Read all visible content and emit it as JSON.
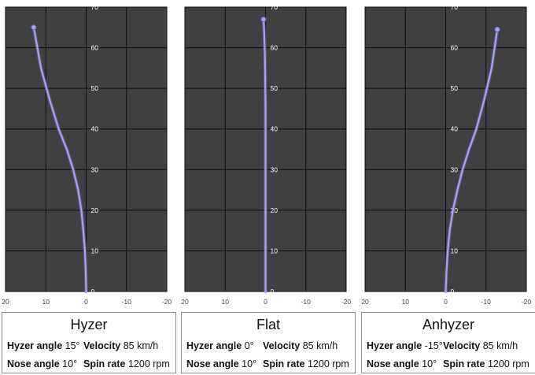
{
  "labels": {
    "hyzer_angle": "Hyzer angle",
    "nose_angle": "Nose angle",
    "velocity": "Velocity",
    "spin_rate": "Spin rate"
  },
  "style": {
    "plot_bg": "#404040",
    "grid": "#0d0d0d",
    "tick_text": "#ffffff",
    "curve": "#a7a3ef",
    "curve_glow": "#6e6ac0"
  },
  "panels": [
    {
      "name": "Hyzer",
      "hyzer_angle": "15°",
      "nose_angle": "10°",
      "velocity": "85 km/h",
      "spin_rate": "1200 rpm"
    },
    {
      "name": "Flat",
      "hyzer_angle": "0°",
      "nose_angle": "10°",
      "velocity": "85 km/h",
      "spin_rate": "1200 rpm"
    },
    {
      "name": "Anhyzer",
      "hyzer_angle": "-15°",
      "nose_angle": "10°",
      "velocity": "85 km/h",
      "spin_rate": "1200 rpm"
    }
  ],
  "chart_data": [
    {
      "type": "line",
      "title": "",
      "xlabel": "",
      "ylabel": "",
      "xlim": [
        20,
        -20
      ],
      "ylim": [
        0,
        70
      ],
      "x_ticks": [
        "20",
        "10",
        "0",
        "-10",
        "-20"
      ],
      "y_ticks": [
        "0",
        "10",
        "20",
        "30",
        "40",
        "50",
        "60",
        "70"
      ],
      "grid": true,
      "series": [
        {
          "x": [
            0,
            0.1,
            0.3,
            0.7,
            1.2,
            2,
            3.2,
            4.8,
            6.8,
            9,
            11.2,
            13
          ],
          "y": [
            0,
            5,
            10,
            15,
            20,
            25,
            30,
            35,
            40,
            47,
            55,
            65
          ]
        }
      ]
    },
    {
      "type": "line",
      "title": "",
      "xlabel": "",
      "ylabel": "",
      "xlim": [
        20,
        -20
      ],
      "ylim": [
        0,
        70
      ],
      "x_ticks": [
        "20",
        "10",
        "0",
        "-10",
        "-20"
      ],
      "y_ticks": [
        "0",
        "10",
        "20",
        "30",
        "40",
        "50",
        "60",
        "70"
      ],
      "grid": true,
      "series": [
        {
          "x": [
            0,
            0,
            0,
            0,
            0,
            0,
            0.05,
            0.1,
            0.2,
            0.3,
            0.4,
            0.5
          ],
          "y": [
            0,
            10,
            20,
            30,
            40,
            45,
            50,
            55,
            60,
            63,
            65,
            67
          ]
        }
      ]
    },
    {
      "type": "line",
      "title": "",
      "xlabel": "",
      "ylabel": "",
      "xlim": [
        20,
        -20
      ],
      "ylim": [
        0,
        70
      ],
      "x_ticks": [
        "20",
        "10",
        "0",
        "-10",
        "-20"
      ],
      "y_ticks": [
        "0",
        "10",
        "20",
        "30",
        "40",
        "50",
        "60",
        "70"
      ],
      "grid": true,
      "series": [
        {
          "x": [
            0,
            -0.2,
            -0.5,
            -1,
            -1.8,
            -2.9,
            -4.2,
            -5.8,
            -7.6,
            -9.5,
            -11.4,
            -12.8
          ],
          "y": [
            0,
            5,
            10,
            15,
            20,
            25,
            30,
            35,
            40,
            47,
            55,
            64.5
          ]
        }
      ]
    }
  ]
}
